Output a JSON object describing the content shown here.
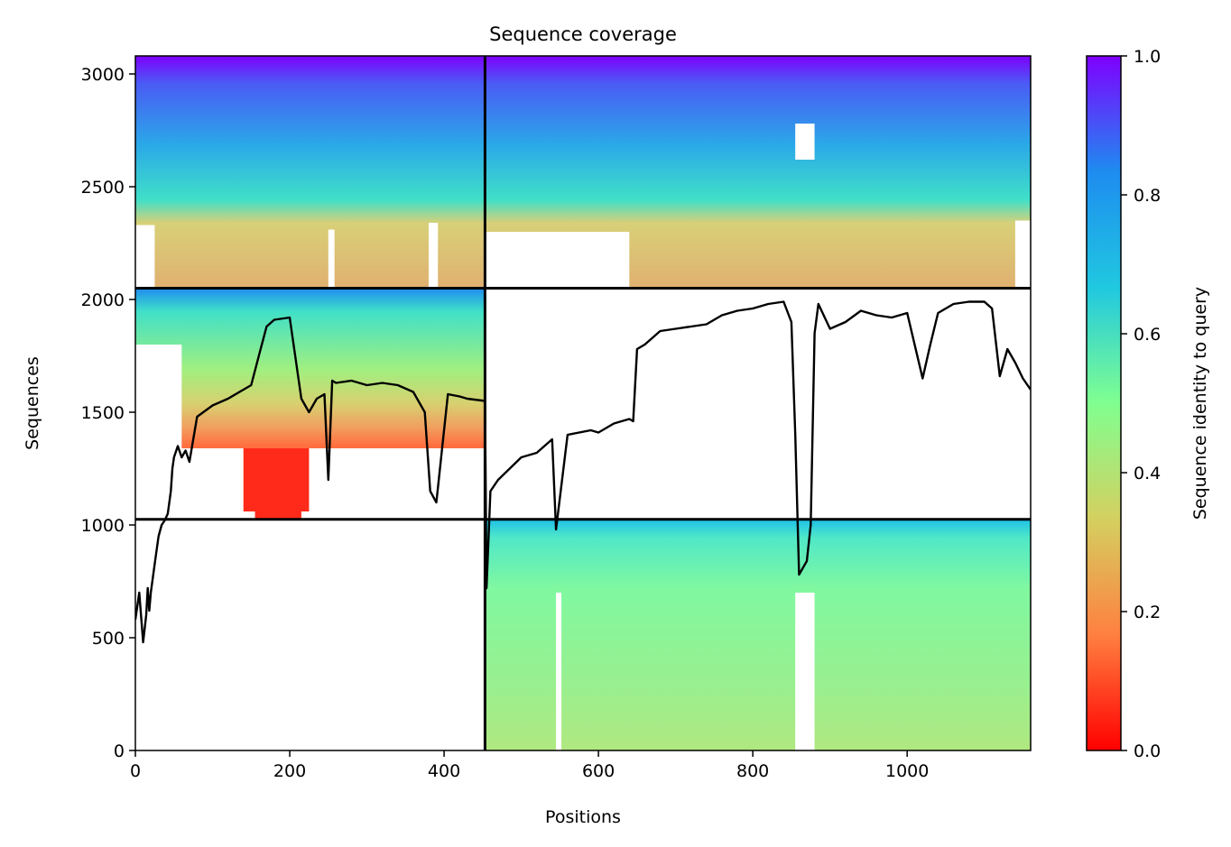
{
  "chart_data": {
    "type": "heatmap",
    "title": "Sequence coverage",
    "xlabel": "Positions",
    "ylabel": "Sequences",
    "xlim": [
      0,
      1160
    ],
    "ylim": [
      0,
      3080
    ],
    "xticks": [
      0,
      200,
      400,
      600,
      800,
      1000
    ],
    "yticks": [
      0,
      500,
      1000,
      1500,
      2000,
      2500,
      3000
    ],
    "grid": false,
    "colormap": "rainbow",
    "colorbar": {
      "label": "Sequence identity to query",
      "range": [
        0,
        1
      ],
      "ticks": [
        0.0,
        0.2,
        0.4,
        0.6,
        0.8,
        1.0
      ],
      "stops": [
        "#ff0000",
        "#ff8040",
        "#d4d060",
        "#80ff90",
        "#20c8e0",
        "#1e8cf0",
        "#7f00ff"
      ]
    },
    "segment_boundaries": {
      "x": [
        453
      ],
      "y": [
        1025,
        2050
      ]
    },
    "blocks": [
      {
        "x_range": [
          0,
          453
        ],
        "seq_range": [
          2050,
          3080
        ],
        "identity_top": 1.0,
        "identity_bottom": 0.28
      },
      {
        "x_range": [
          453,
          1160
        ],
        "seq_range": [
          2050,
          3080
        ],
        "identity_top": 1.0,
        "identity_bottom": 0.28
      },
      {
        "x_range": [
          0,
          453
        ],
        "seq_range": [
          1025,
          2050
        ],
        "identity_top": 0.85,
        "identity_bottom": 0.0
      },
      {
        "x_range": [
          453,
          1160
        ],
        "seq_range": [
          1025,
          2050
        ],
        "identity_top": null,
        "identity_bottom": null
      },
      {
        "x_range": [
          0,
          453
        ],
        "seq_range": [
          0,
          1025
        ],
        "identity_top": null,
        "identity_bottom": null
      },
      {
        "x_range": [
          453,
          1160
        ],
        "seq_range": [
          0,
          1025
        ],
        "identity_top": 0.78,
        "identity_bottom": 0.42
      }
    ],
    "series": [
      {
        "type": "line",
        "color": "#000000",
        "x": [
          0,
          5,
          10,
          14,
          16,
          18,
          20,
          24,
          26,
          30,
          34,
          38,
          42,
          46,
          48,
          50,
          55,
          60,
          65,
          70,
          80,
          100,
          120,
          140,
          150,
          160,
          170,
          180,
          200,
          215,
          225,
          235,
          245,
          250,
          255,
          260,
          280,
          300,
          320,
          340,
          360,
          375,
          382,
          390,
          405,
          420,
          430,
          453,
          455,
          460,
          470,
          500,
          520,
          540,
          545,
          560,
          590,
          600,
          620,
          640,
          645,
          650,
          660,
          680,
          700,
          720,
          740,
          760,
          780,
          800,
          820,
          840,
          850,
          855,
          860,
          870,
          875,
          880,
          885,
          900,
          920,
          940,
          960,
          980,
          1000,
          1020,
          1030,
          1040,
          1060,
          1080,
          1100,
          1110,
          1120,
          1130,
          1140,
          1150,
          1160
        ],
        "y": [
          580,
          700,
          480,
          600,
          720,
          620,
          700,
          800,
          850,
          950,
          1000,
          1020,
          1050,
          1150,
          1250,
          1300,
          1350,
          1300,
          1330,
          1280,
          1480,
          1530,
          1560,
          1600,
          1620,
          1750,
          1880,
          1910,
          1920,
          1560,
          1500,
          1560,
          1580,
          1200,
          1640,
          1630,
          1640,
          1620,
          1630,
          1620,
          1590,
          1500,
          1150,
          1100,
          1580,
          1570,
          1560,
          1550,
          720,
          1150,
          1200,
          1300,
          1320,
          1380,
          980,
          1400,
          1420,
          1410,
          1450,
          1470,
          1460,
          1780,
          1800,
          1860,
          1870,
          1880,
          1890,
          1930,
          1950,
          1960,
          1980,
          1990,
          1900,
          1400,
          780,
          840,
          1000,
          1850,
          1980,
          1870,
          1900,
          1950,
          1930,
          1920,
          1940,
          1650,
          1800,
          1940,
          1980,
          1990,
          1990,
          1960,
          1660,
          1780,
          1720,
          1650,
          1600
        ]
      }
    ]
  }
}
